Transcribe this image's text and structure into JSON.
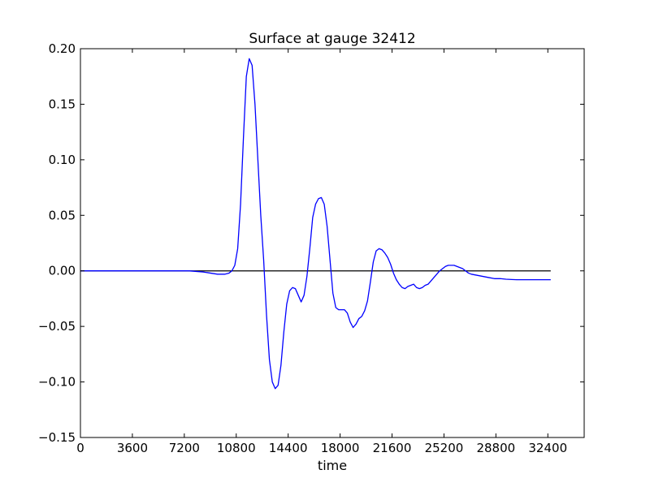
{
  "chart_data": {
    "type": "line",
    "title": "Surface at gauge 32412",
    "xlabel": "time",
    "ylabel": "",
    "xlim": [
      0,
      34920
    ],
    "ylim": [
      -0.15,
      0.2
    ],
    "xticks": [
      0,
      3600,
      7200,
      10800,
      14400,
      18000,
      21600,
      25200,
      28800,
      32400
    ],
    "xtick_labels": [
      "0",
      "3600",
      "7200",
      "10800",
      "14400",
      "18000",
      "21600",
      "25200",
      "28800",
      "32400"
    ],
    "yticks": [
      -0.15,
      -0.1,
      -0.05,
      0.0,
      0.05,
      0.1,
      0.15,
      0.2
    ],
    "ytick_labels": [
      "−0.15",
      "−0.10",
      "−0.05",
      "0.00",
      "0.05",
      "0.10",
      "0.15",
      "0.20"
    ],
    "grid": false,
    "series": [
      {
        "color": "#0000ff",
        "x": [
          0,
          2000,
          4000,
          6000,
          7500,
          8500,
          9000,
          9500,
          10000,
          10300,
          10500,
          10700,
          10900,
          11100,
          11300,
          11500,
          11700,
          11900,
          12100,
          12300,
          12500,
          12700,
          12900,
          13100,
          13300,
          13500,
          13700,
          13900,
          14100,
          14300,
          14500,
          14700,
          14900,
          15100,
          15300,
          15500,
          15700,
          15900,
          16100,
          16300,
          16500,
          16700,
          16900,
          17100,
          17300,
          17500,
          17700,
          17900,
          18100,
          18300,
          18500,
          18700,
          18900,
          19100,
          19300,
          19500,
          19700,
          19900,
          20100,
          20300,
          20500,
          20700,
          20900,
          21100,
          21300,
          21500,
          21700,
          21900,
          22100,
          22300,
          22500,
          22700,
          22900,
          23100,
          23300,
          23500,
          23700,
          23900,
          24100,
          24300,
          24500,
          24700,
          24900,
          25100,
          25300,
          25500,
          25700,
          25900,
          26100,
          26300,
          26500,
          26700,
          26900,
          27100,
          27500,
          27900,
          28300,
          28700,
          29100,
          29500,
          29900,
          30300,
          30700,
          31100,
          31500,
          31900,
          32300,
          32600
        ],
        "y": [
          0.0,
          0.0,
          0.0,
          0.0,
          0.0,
          -0.001,
          -0.002,
          -0.003,
          -0.003,
          -0.002,
          0.0,
          0.005,
          0.02,
          0.06,
          0.12,
          0.175,
          0.191,
          0.185,
          0.15,
          0.1,
          0.05,
          0.01,
          -0.04,
          -0.08,
          -0.1,
          -0.106,
          -0.103,
          -0.085,
          -0.055,
          -0.03,
          -0.018,
          -0.015,
          -0.016,
          -0.022,
          -0.028,
          -0.022,
          -0.005,
          0.02,
          0.048,
          0.06,
          0.065,
          0.066,
          0.06,
          0.04,
          0.01,
          -0.02,
          -0.033,
          -0.035,
          -0.035,
          -0.035,
          -0.038,
          -0.046,
          -0.051,
          -0.048,
          -0.043,
          -0.041,
          -0.036,
          -0.027,
          -0.01,
          0.008,
          0.018,
          0.02,
          0.019,
          0.016,
          0.012,
          0.006,
          -0.002,
          -0.008,
          -0.012,
          -0.015,
          -0.016,
          -0.014,
          -0.013,
          -0.012,
          -0.015,
          -0.016,
          -0.015,
          -0.013,
          -0.012,
          -0.009,
          -0.006,
          -0.003,
          0.0,
          0.002,
          0.004,
          0.005,
          0.005,
          0.005,
          0.004,
          0.003,
          0.002,
          0.0,
          -0.002,
          -0.003,
          -0.004,
          -0.005,
          -0.006,
          -0.007,
          -0.007,
          -0.0075,
          -0.0078,
          -0.008,
          -0.008,
          -0.008,
          -0.008,
          -0.008,
          -0.008,
          -0.008
        ]
      }
    ],
    "reference_line": {
      "y": 0.0,
      "x_range": [
        0,
        32600
      ],
      "color": "#000000"
    }
  }
}
